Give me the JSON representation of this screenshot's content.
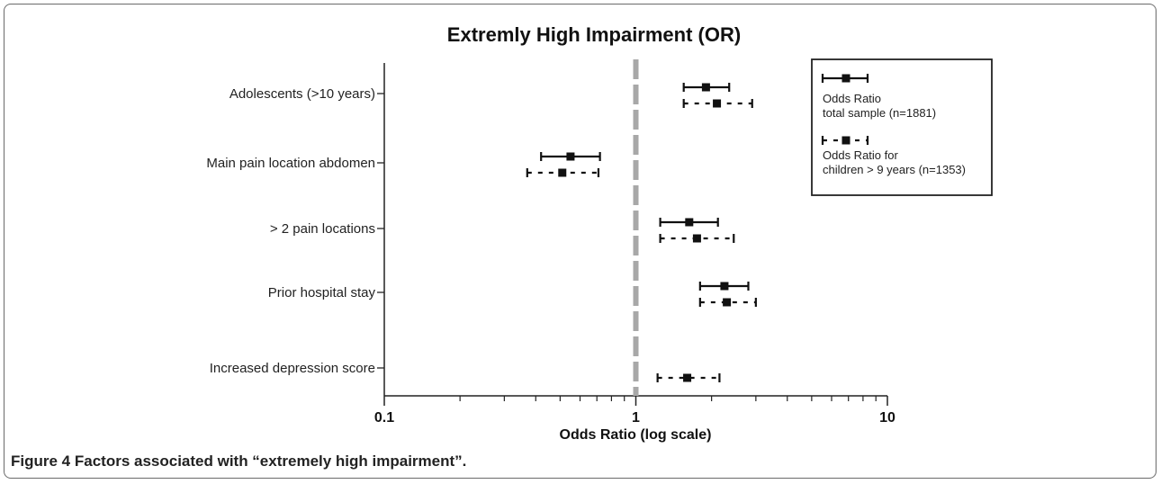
{
  "chart_data": {
    "type": "forest",
    "title": "Extremly High Impairment (OR)",
    "xlabel": "Odds Ratio (log scale)",
    "x_scale": "log",
    "xlim": [
      0.1,
      10
    ],
    "x_ticks": [
      {
        "value": 0.1,
        "label": "0.1"
      },
      {
        "value": 1,
        "label": "1"
      },
      {
        "value": 10,
        "label": "10"
      }
    ],
    "reference_line": 1,
    "categories": [
      "Adolescents (>10 years)",
      "Main pain location abdomen",
      "> 2 pain locations",
      "Prior hospital stay",
      "Increased depression score"
    ],
    "series": [
      {
        "name": "Odds Ratio total sample (n=1881)",
        "style": "solid",
        "legend_lines": [
          "Odds Ratio",
          "total sample (n=1881)"
        ],
        "points": [
          {
            "category": "Adolescents (>10 years)",
            "or": 1.9,
            "ci": [
              1.55,
              2.35
            ]
          },
          {
            "category": "Main pain location abdomen",
            "or": 0.55,
            "ci": [
              0.42,
              0.72
            ]
          },
          {
            "category": "> 2 pain locations",
            "or": 1.63,
            "ci": [
              1.25,
              2.12
            ]
          },
          {
            "category": "Prior hospital stay",
            "or": 2.25,
            "ci": [
              1.8,
              2.8
            ]
          }
        ]
      },
      {
        "name": "Odds Ratio for children > 9 years (n=1353)",
        "style": "dotted",
        "legend_lines": [
          "Odds Ratio for",
          "children > 9 years (n=1353)"
        ],
        "points": [
          {
            "category": "Adolescents (>10 years)",
            "or": 2.1,
            "ci": [
              1.55,
              2.9
            ]
          },
          {
            "category": "Main pain location abdomen",
            "or": 0.51,
            "ci": [
              0.37,
              0.71
            ]
          },
          {
            "category": "> 2 pain locations",
            "or": 1.75,
            "ci": [
              1.25,
              2.45
            ]
          },
          {
            "category": "Prior hospital stay",
            "or": 2.3,
            "ci": [
              1.8,
              3.0
            ]
          },
          {
            "category": "Increased depression score",
            "or": 1.6,
            "ci": [
              1.22,
              2.15
            ]
          }
        ]
      }
    ],
    "legend_position": "top-right",
    "colors": {
      "marks": "#111111",
      "reference_line": "#a8a8a8",
      "axis": "#222222"
    }
  },
  "caption": {
    "label": "Figure 4",
    "text": "Factors associated with “extremely high impairment”."
  }
}
